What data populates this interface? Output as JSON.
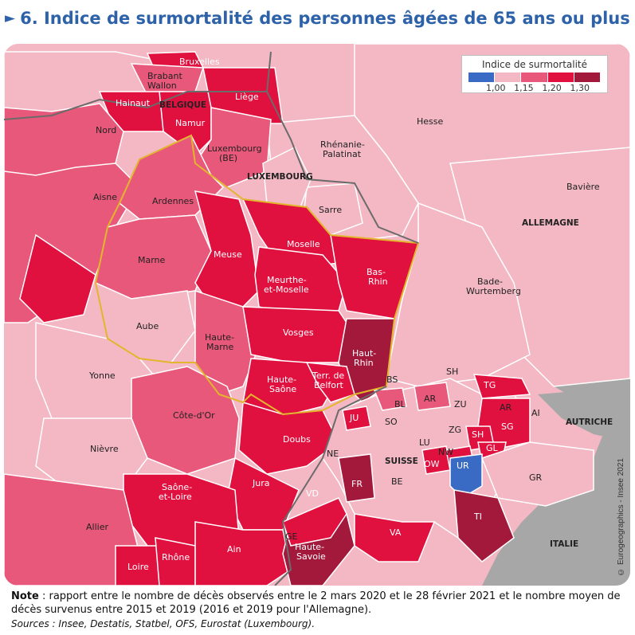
{
  "title": {
    "arrow": "►",
    "text": "6. Indice de surmortalité des personnes âgées de 65 ans ou plus"
  },
  "legend": {
    "title": "Indice de surmortalité",
    "ticks": [
      "1,00",
      "1,15",
      "1,20",
      "1,30"
    ],
    "colors": [
      "#3a6bc4",
      "#f3b8c4",
      "#e8587a",
      "#e0103f",
      "#a3193c"
    ]
  },
  "colors": {
    "sea": "#f6f6f6",
    "gray_country": "#a7a7a7",
    "border_region": "#ffffff",
    "border_country": "#6b6b6b",
    "highlight_region": "#e3b52d"
  },
  "map": {
    "countries": [
      "BELGIQUE",
      "LUXEMBOURG",
      "ALLEMAGNE",
      "SUISSE",
      "AUTRICHE",
      "ITALIE"
    ],
    "regions": {
      "bruxelles": "Bruxelles",
      "brabant": "Brabant\nWallon",
      "hainaut": "Hainaut",
      "namur": "Namur",
      "liege": "Liège",
      "luxembourg_be": "Luxembourg\n(BE)",
      "nord": "Nord",
      "aisne": "Aisne",
      "ardennes": "Ardennes",
      "marne": "Marne",
      "aube": "Aube",
      "meuse": "Meuse",
      "moselle": "Moselle",
      "meurthe": "Meurthe-\net-Moselle",
      "bas_rhin": "Bas-\nRhin",
      "haute_marne": "Haute-\nMarne",
      "vosges": "Vosges",
      "haut_rhin": "Haut-\nRhin",
      "yonne": "Yonne",
      "cote_dor": "Côte-d'Or",
      "haute_saone": "Haute-\nSaône",
      "belfort": "Terr. de\nBelfort",
      "nievre": "Nièvre",
      "doubs": "Doubs",
      "jura": "Jura",
      "saone_loire": "Saône-\net-Loire",
      "allier": "Allier",
      "ain": "Ain",
      "rhone": "Rhône",
      "loire": "Loire",
      "haute_savoie": "Haute-\nSavoie",
      "hesse": "Hesse",
      "rhenanie": "Rhénanie-\nPalatinat",
      "sarre": "Sarre",
      "baviere": "Bavière",
      "bade": "Bade-\nWurtemberg",
      "ch_bs": "BS",
      "ch_bl": "BL",
      "ch_so": "SO",
      "ch_ar": "AR",
      "ch_zu": "ZU",
      "ch_sh": "SH",
      "ch_tg": "TG",
      "ch_ar2": "AR",
      "ch_ai": "AI",
      "ch_sg": "SG",
      "ch_zg": "ZG",
      "ch_sh2": "SH",
      "ch_gl": "GL",
      "ch_lu": "LU",
      "ch_nw": "NW",
      "ch_ow": "OW",
      "ch_ur": "UR",
      "ch_ju": "JU",
      "ch_ne": "NE",
      "ch_fr": "FR",
      "ch_be": "BE",
      "ch_vd": "VD",
      "ch_ge": "GE",
      "ch_va": "VA",
      "ch_ti": "TI",
      "ch_gr": "GR"
    }
  },
  "credit": "© Eurogeographics - Insee 2021",
  "note": {
    "label": "Note",
    "text": " : rapport entre le nombre de décès observés entre le 2 mars 2020 et le 28 février 2021 et le nombre moyen de décès survenus entre 2015 et 2019 (2016 et 2019 pour l'Allemagne)."
  },
  "sources": "Sources : Insee, Destatis, Statbel, OFS, Eurostat (Luxembourg)."
}
